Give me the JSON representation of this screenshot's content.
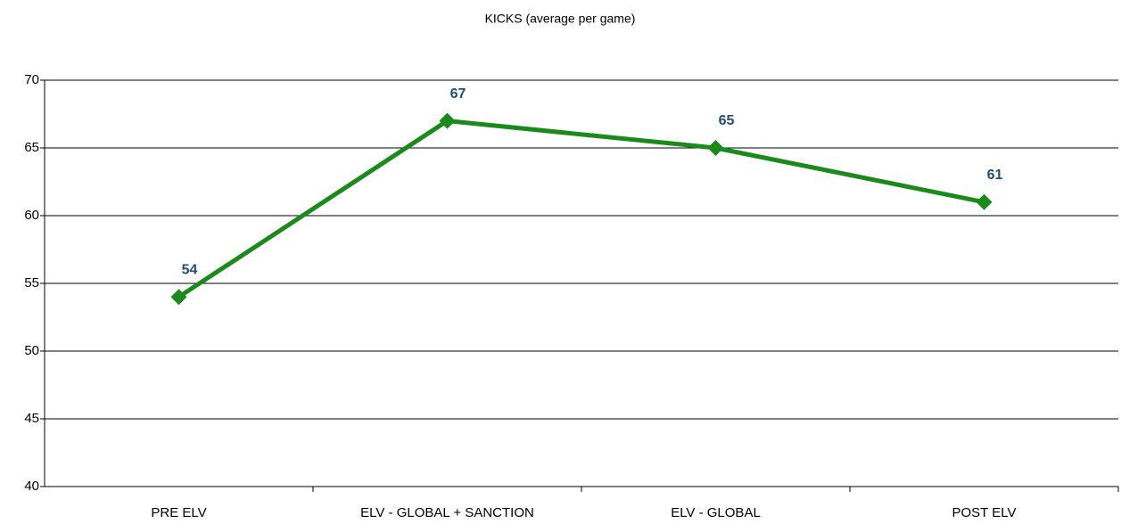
{
  "chart_data": {
    "type": "line",
    "title": "KICKS (average per game)",
    "categories": [
      "PRE ELV",
      "ELV - GLOBAL + SANCTION",
      "ELV - GLOBAL",
      "POST ELV"
    ],
    "series": [
      {
        "name": "KICKS",
        "color": "#1a8a1a",
        "values": [
          54,
          67,
          65,
          61
        ]
      }
    ],
    "ylim": [
      40,
      70
    ],
    "yticks": [
      40,
      45,
      50,
      55,
      60,
      65,
      70
    ],
    "grid": true,
    "data_labels": true
  }
}
